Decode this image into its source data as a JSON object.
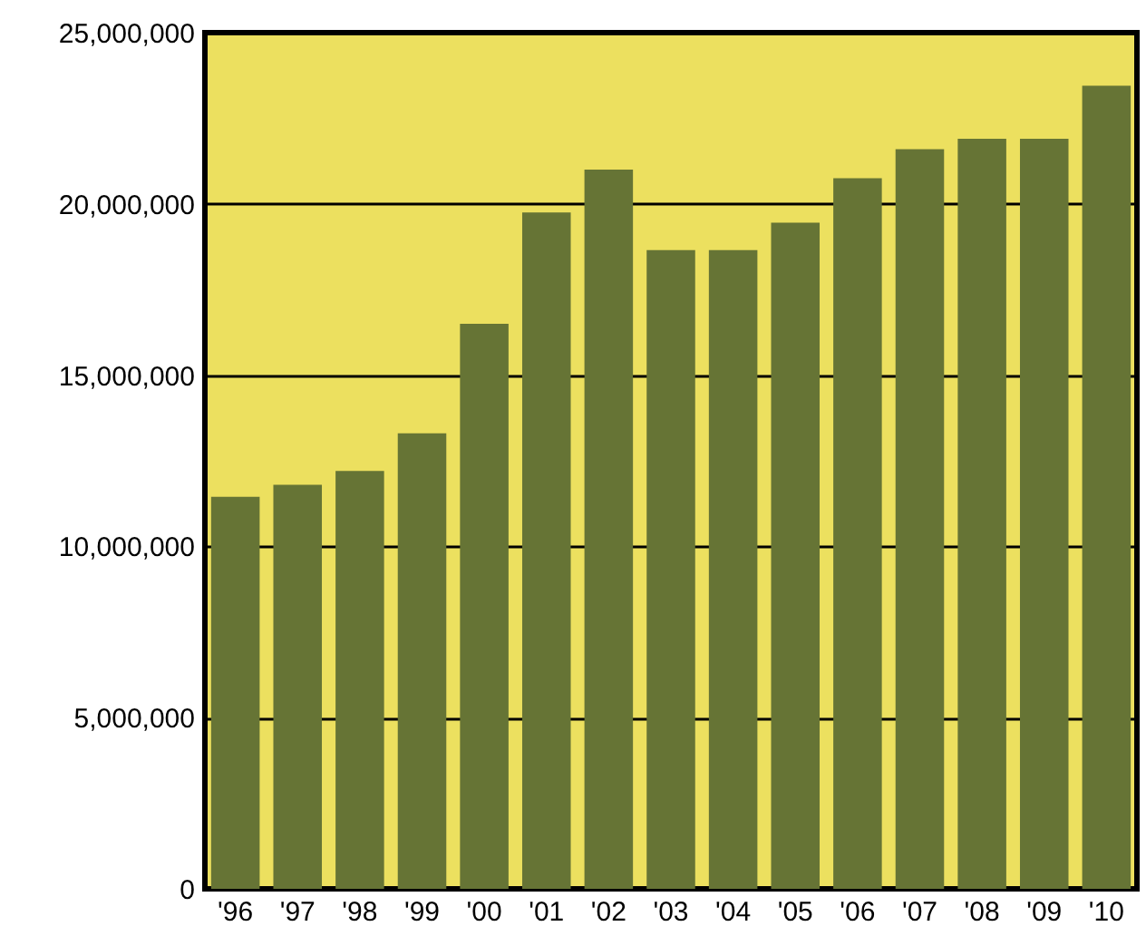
{
  "chart_data": {
    "type": "bar",
    "categories": [
      "'96",
      "'97",
      "'98",
      "'99",
      "'00",
      "'01",
      "'02",
      "'03",
      "'04",
      "'05",
      "'06",
      "'07",
      "'08",
      "'09",
      "'10"
    ],
    "values": [
      11450000,
      11800000,
      12200000,
      13300000,
      16500000,
      19750000,
      21000000,
      18650000,
      18650000,
      19450000,
      20750000,
      21600000,
      21900000,
      21900000,
      23450000
    ],
    "color": "#667435",
    "ylim": [
      0,
      25000000
    ],
    "yticks": [
      0,
      {
        "value": 5000000,
        "label": "5,000,000"
      },
      {
        "value": 10000000,
        "label": "10,000,000"
      },
      {
        "value": 15000000,
        "label": "15,000,000"
      },
      {
        "value": 20000000,
        "label": "20,000,000"
      },
      {
        "value": 25000000,
        "label": "25,000,000"
      }
    ],
    "grid": "y"
  }
}
